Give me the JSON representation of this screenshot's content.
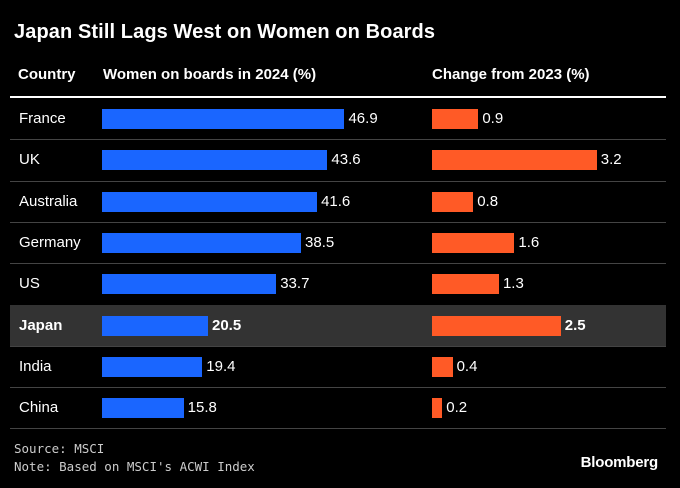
{
  "title": "Japan Still Lags West on Women on Boards",
  "headers": {
    "country": "Country",
    "women": "Women on boards in 2024 (%)",
    "change": "Change from 2023 (%)"
  },
  "colors": {
    "women_bar": "#1a66ff",
    "change_bar": "#ff5a26",
    "highlight_row": "#333333"
  },
  "chart_data": {
    "type": "bar",
    "title": "Japan Still Lags West on Women on Boards",
    "categories": [
      "France",
      "UK",
      "Australia",
      "Germany",
      "US",
      "Japan",
      "India",
      "China"
    ],
    "highlight": "Japan",
    "series": [
      {
        "name": "Women on boards in 2024 (%)",
        "values": [
          46.9,
          43.6,
          41.6,
          38.5,
          33.7,
          20.5,
          19.4,
          15.8
        ]
      },
      {
        "name": "Change from 2023 (%)",
        "values": [
          0.9,
          3.2,
          0.8,
          1.6,
          1.3,
          2.5,
          0.4,
          0.2
        ]
      }
    ],
    "orientation": "horizontal"
  },
  "footer": {
    "source": "Source: MSCI",
    "note": "Note: Based on MSCI's ACWI Index",
    "brand": "Bloomberg"
  }
}
